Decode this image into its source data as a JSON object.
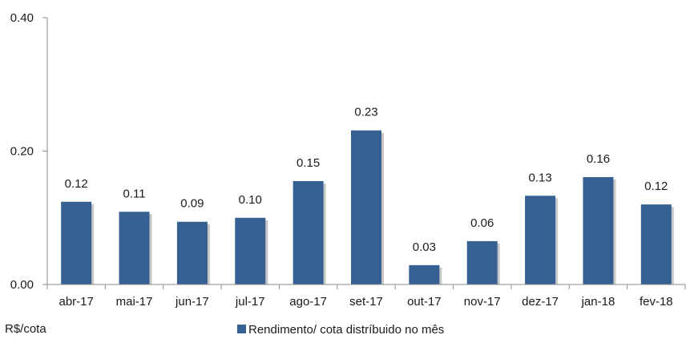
{
  "chart_data": {
    "type": "bar",
    "categories": [
      "abr-17",
      "mai-17",
      "jun-17",
      "jul-17",
      "ago-17",
      "set-17",
      "out-17",
      "nov-17",
      "dez-17",
      "jan-18",
      "fev-18"
    ],
    "series": [
      {
        "name": "Rendimento/ cota distríbuido no mês",
        "values": [
          0.12,
          0.11,
          0.09,
          0.1,
          0.15,
          0.23,
          0.03,
          0.06,
          0.13,
          0.16,
          0.12
        ],
        "plot_values": [
          0.124,
          0.109,
          0.094,
          0.1,
          0.155,
          0.231,
          0.029,
          0.065,
          0.133,
          0.161,
          0.12
        ],
        "color": "#366092"
      }
    ],
    "data_labels": [
      "0.12",
      "0.11",
      "0.09",
      "0.10",
      "0.15",
      "0.23",
      "0.03",
      "0.06",
      "0.13",
      "0.16",
      "0.12"
    ],
    "ylim": [
      0,
      0.4
    ],
    "yticks": [
      0.0,
      0.2,
      0.4
    ],
    "ytick_labels": [
      "0.00",
      "0.20",
      "0.40"
    ],
    "unit_label": "R$/cota",
    "legend": {
      "label": "Rendimento/ cota distríbuido no mês",
      "position": "bottom-center"
    },
    "grid": false,
    "colors": {
      "bar": "#366092",
      "axis": "#8c8c8c",
      "shadow": "#c8c8c8"
    }
  }
}
